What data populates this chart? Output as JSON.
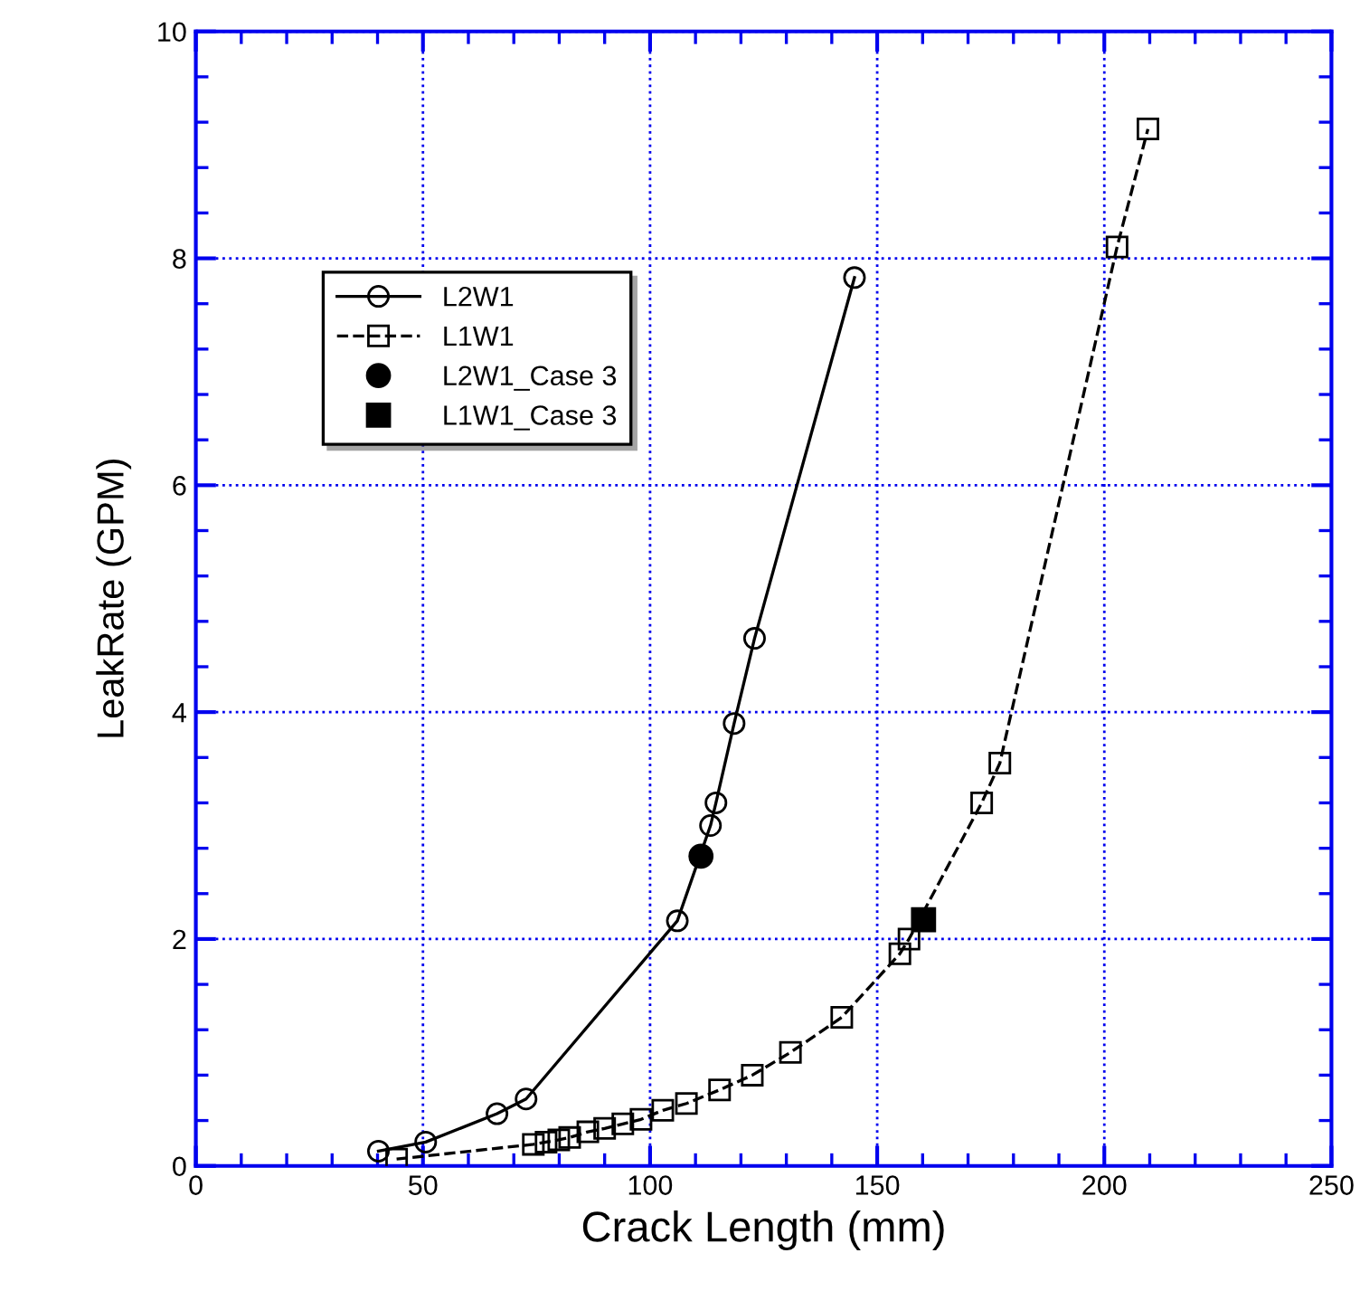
{
  "chart_data": {
    "type": "line",
    "xlabel": "Crack Length (mm)",
    "ylabel": "LeakRate (GPM)",
    "xlim": [
      0,
      250
    ],
    "xticks": [
      0,
      50,
      100,
      150,
      200,
      250
    ],
    "ylim": [
      0,
      10
    ],
    "yticks": [
      0,
      2,
      4,
      6,
      8,
      10
    ],
    "grid": true,
    "legend": "top left",
    "series": [
      {
        "name": "L2W1",
        "color": "#000000",
        "marker": "circle",
        "line_style": "solid",
        "x": [
          40.2,
          50.6,
          66.3,
          72.7,
          106,
          113.3,
          114.5,
          118.5,
          123,
          145
        ],
        "values": [
          0.13,
          0.21,
          0.46,
          0.59,
          2.16,
          3.0,
          3.2,
          3.9,
          4.65,
          7.83
        ]
      },
      {
        "name": "L1W1",
        "color": "#000000",
        "marker": "square",
        "line_style": "dashed",
        "x": [
          44.2,
          74.3,
          77.1,
          79.9,
          82.3,
          86.3,
          90,
          94,
          98,
          102.8,
          108,
          115.3,
          122.5,
          130.9,
          142.2,
          155,
          157,
          173,
          177,
          202.8,
          209.6
        ],
        "values": [
          0.06,
          0.19,
          0.21,
          0.23,
          0.25,
          0.3,
          0.33,
          0.37,
          0.41,
          0.49,
          0.55,
          0.67,
          0.8,
          1.0,
          1.31,
          1.87,
          2.0,
          3.2,
          3.55,
          8.1,
          9.14
        ]
      },
      {
        "name": "L2W1_Case 3",
        "type": "scatter",
        "color": "#000000",
        "marker": "circle",
        "x": [
          111.2
        ],
        "values": [
          2.73
        ]
      },
      {
        "name": "L1W1_Case 3",
        "type": "scatter",
        "color": "#000000",
        "marker": "square",
        "x": [
          160.2
        ],
        "values": [
          2.17
        ]
      }
    ]
  }
}
